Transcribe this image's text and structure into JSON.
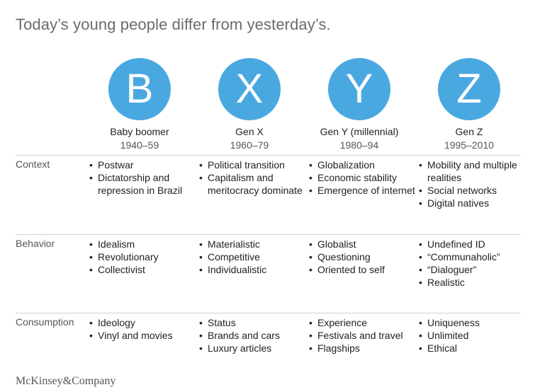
{
  "title": "Today’s young people differ from yesterday’s.",
  "generations": [
    {
      "letter": "B",
      "name": "Baby boomer",
      "years": "1940–59"
    },
    {
      "letter": "X",
      "name": "Gen X",
      "years": "1960–79"
    },
    {
      "letter": "Y",
      "name": "Gen Y (millennial)",
      "years": "1980–94"
    },
    {
      "letter": "Z",
      "name": "Gen Z",
      "years": "1995–2010"
    }
  ],
  "rows": [
    {
      "label": "Context",
      "cells": [
        [
          "Postwar",
          "Dictatorship and repression in Brazil"
        ],
        [
          "Political transition",
          "Capitalism and meritocracy dominate"
        ],
        [
          "Globalization",
          "Economic stability",
          "Emergence of internet"
        ],
        [
          "Mobility and multiple realities",
          "Social networks",
          "Digital natives"
        ]
      ]
    },
    {
      "label": "Behavior",
      "cells": [
        [
          "Idealism",
          "Revolutionary",
          "Collectivist"
        ],
        [
          "Materialistic",
          "Competitive",
          "Individualistic"
        ],
        [
          "Globalist",
          "Questioning",
          "Oriented to self"
        ],
        [
          "Undefined ID",
          "“Communaholic”",
          "“Dialoguer”",
          "Realistic"
        ]
      ]
    },
    {
      "label": "Consumption",
      "cells": [
        [
          "Ideology",
          "Vinyl and movies"
        ],
        [
          "Status",
          "Brands and cars",
          "Luxury articles"
        ],
        [
          "Experience",
          "Festivals and travel",
          "Flagships"
        ],
        [
          "Uniqueness",
          "Unlimited",
          "Ethical"
        ]
      ]
    }
  ],
  "logo_text": "McKinsey&Company",
  "colors": {
    "circle": "#4aa8e0",
    "title": "#6b6b6b",
    "divider": "#d0d0d0"
  }
}
